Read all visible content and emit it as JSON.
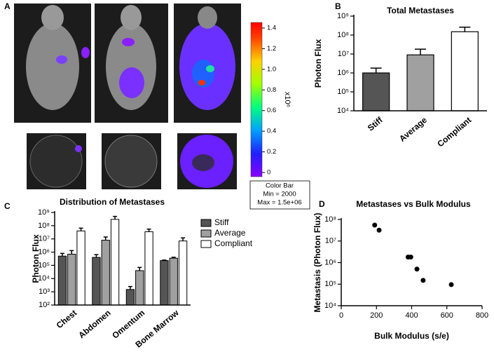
{
  "panel_a": {
    "panel": "A",
    "colorbar": {
      "ticks": [
        0,
        0.2,
        0.4,
        0.6,
        0.8,
        1.0,
        1.2,
        1.4
      ],
      "tick_labels": [
        "0",
        "0.2",
        "0.4",
        "0.6",
        "0.8",
        "1.0",
        "1.2",
        "1.4"
      ],
      "exponent_label": "x10⁶",
      "note": [
        "Color Bar",
        "Min = 2000",
        "Max = 1.5e+06"
      ]
    }
  },
  "chart_data": [
    {
      "type": "bar",
      "panel": "B",
      "title": "Total Metastases",
      "y_label": "Photon Flux",
      "log_y": true,
      "categories": [
        "Stiff",
        "Average",
        "Compliant"
      ],
      "values": [
        1000000,
        9000000,
        150000000
      ],
      "errors": [
        800000,
        9000000,
        110000000
      ],
      "colors": [
        "#555555",
        "#a0a0a0",
        "#ffffff"
      ],
      "ylim": [
        10000,
        1000000000
      ],
      "yticks": [
        {
          "value": 10000,
          "label": "10⁴"
        },
        {
          "value": 100000,
          "label": "10⁵"
        },
        {
          "value": 1000000,
          "label": "10⁶"
        },
        {
          "value": 10000000,
          "label": "10⁷"
        },
        {
          "value": 100000000,
          "label": "10⁸"
        },
        {
          "value": 1000000000,
          "label": "10⁹"
        }
      ]
    },
    {
      "type": "grouped_bar",
      "panel": "C",
      "title": "Distribution of Metastases",
      "y_label": "Photon Flux",
      "log_y": true,
      "categories": [
        "Chest",
        "Abdomen",
        "Omentum",
        "Bone Marrow"
      ],
      "series": [
        {
          "name": "Stiff",
          "color": "#555555",
          "values": [
            500000,
            400000,
            1500,
            230000
          ],
          "errors": [
            300000,
            250000,
            1000,
            20000
          ]
        },
        {
          "name": "Average",
          "color": "#a0a0a0",
          "values": [
            700000,
            8000000,
            40000,
            350000
          ],
          "errors": [
            600000,
            6000000,
            30000,
            60000
          ]
        },
        {
          "name": "Compliant",
          "color": "#ffffff",
          "values": [
            40000000,
            300000000,
            35000000,
            7000000
          ],
          "errors": [
            25000000,
            200000000,
            20000000,
            5000000
          ]
        }
      ],
      "legend": "right",
      "ylim": [
        100,
        1000000000
      ],
      "yticks": [
        {
          "value": 100,
          "label": "10²"
        },
        {
          "value": 1000,
          "label": "10³"
        },
        {
          "value": 10000,
          "label": "10⁴"
        },
        {
          "value": 100000,
          "label": "10⁵"
        },
        {
          "value": 1000000,
          "label": "10⁶"
        },
        {
          "value": 10000000,
          "label": "10⁷"
        },
        {
          "value": 100000000,
          "label": "10⁸"
        },
        {
          "value": 1000000000,
          "label": "10⁹"
        }
      ]
    },
    {
      "type": "scatter",
      "panel": "D",
      "title": "Metastases vs Bulk Modulus",
      "x_label": "Bulk Modulus (s/e)",
      "y_label": "Metastasis (Photon Flux)",
      "log_y": true,
      "x": [
        190,
        215,
        380,
        395,
        430,
        465,
        625
      ],
      "values": [
        55000000,
        32000000,
        1800000,
        1800000,
        500000,
        150000,
        95000
      ],
      "color": "#000000",
      "xlim": [
        0,
        800
      ],
      "xticks": [
        0,
        200,
        400,
        600,
        800
      ],
      "ylim": [
        10000,
        100000000
      ],
      "yticks": [
        {
          "value": 10000,
          "label": "10⁴"
        },
        {
          "value": 100000,
          "label": "10⁵"
        },
        {
          "value": 1000000,
          "label": "10⁶"
        },
        {
          "value": 10000000,
          "label": "10⁷"
        },
        {
          "value": 100000000,
          "label": "10⁸"
        }
      ]
    }
  ]
}
